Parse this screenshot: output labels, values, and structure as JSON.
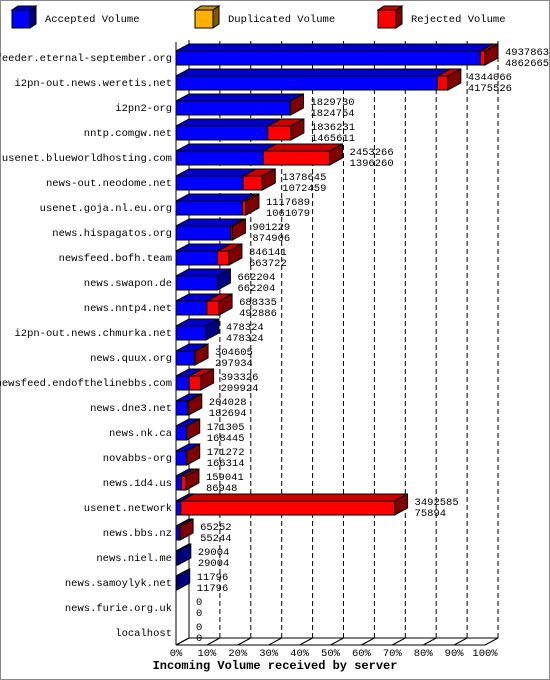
{
  "chart_data": {
    "type": "bar3d",
    "title": "Incoming Volume received by server",
    "legend": [
      {
        "name": "Accepted Volume",
        "color": "#0000ff"
      },
      {
        "name": "Duplicated Volume",
        "color": "#ffb000"
      },
      {
        "name": "Rejected Volume",
        "color": "#ff0000"
      }
    ],
    "categories": [
      "feeder.eternal-september.org",
      "i2pn-out.news.weretis.net",
      "i2pn2-org",
      "nntp.comgw.net",
      "usenet.blueworldhosting.com",
      "news-out.neodome.net",
      "usenet.goja.nl.eu.org",
      "news.hispagatos.org",
      "newsfeed.bofh.team",
      "news.swapon.de",
      "news.nntp4.net",
      "i2pn-out.news.chmurka.net",
      "news.quux.org",
      "newsfeed.endofthelinebbs.com",
      "news.dne3.net",
      "news.nk.ca",
      "novabbs-org",
      "news.1d4.us",
      "usenet.network",
      "news.bbs.nz",
      "news.niel.me",
      "news.samoylyk.net",
      "news.furie.org.uk",
      "localhost"
    ],
    "totals": [
      4937863,
      4344066,
      1829730,
      1836231,
      2453266,
      1378645,
      1117689,
      901229,
      846141,
      662204,
      688335,
      478324,
      304605,
      393326,
      204028,
      171305,
      171272,
      159041,
      3492585,
      65252,
      29004,
      11796,
      0,
      0
    ],
    "accepted": [
      4862665,
      4175526,
      1824754,
      1465611,
      1396260,
      1072459,
      1061079,
      874906,
      663722,
      662204,
      492886,
      478324,
      297934,
      209924,
      182694,
      168445,
      166314,
      86948,
      75894,
      55244,
      29004,
      11796,
      0,
      0
    ],
    "xlim": [
      0,
      4937863
    ],
    "xticks": [
      {
        "value": 0,
        "label": "0%"
      },
      {
        "value": 493786.3,
        "label": "10%"
      },
      {
        "value": 987572.6,
        "label": "20%"
      },
      {
        "value": 1481358.9,
        "label": "30%"
      },
      {
        "value": 1975145.2,
        "label": "40%"
      },
      {
        "value": 2468931.5,
        "label": "50%"
      },
      {
        "value": 2962717.8,
        "label": "60%"
      },
      {
        "value": 3456504.1,
        "label": "70%"
      },
      {
        "value": 3950290.4,
        "label": "80%"
      },
      {
        "value": 4444076.7,
        "label": "90%"
      },
      {
        "value": 4937863,
        "label": "100%"
      }
    ],
    "grid": true
  }
}
